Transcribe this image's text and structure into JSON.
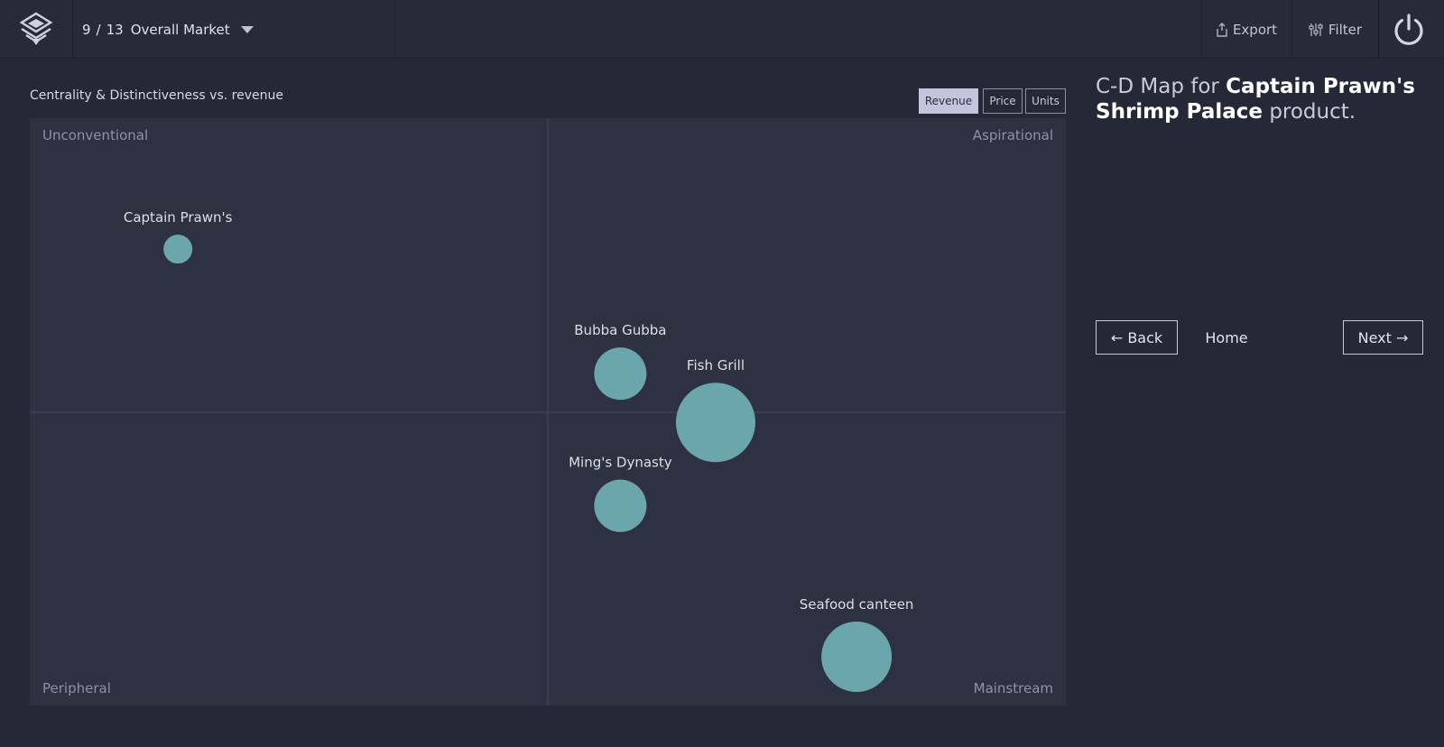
{
  "topbar": {
    "page_current": "9",
    "page_sep": "/",
    "page_total": "13",
    "market_label": "Overall Market",
    "export_label": "Export",
    "filter_label": "Filter"
  },
  "chart": {
    "title": "Centrality & Distinctiveness vs. revenue",
    "toggles": {
      "revenue": "Revenue",
      "price": "Price",
      "units": "Units",
      "active": "Revenue"
    },
    "quadrants": {
      "top_left": "Unconventional",
      "top_right": "Aspirational",
      "bottom_left": "Peripheral",
      "bottom_right": "Mainstream"
    }
  },
  "chart_data": {
    "type": "scatter",
    "title": "Centrality & Distinctiveness vs. revenue",
    "xlabel": "",
    "ylabel": "",
    "grid": false,
    "bubble_color": "#6ba6ad",
    "points": [
      {
        "name": "Captain Prawn's",
        "x": 0.143,
        "y": 0.777,
        "size": 16
      },
      {
        "name": "Bubba Gubba",
        "x": 0.57,
        "y": 0.565,
        "size": 29
      },
      {
        "name": "Fish Grill",
        "x": 0.662,
        "y": 0.482,
        "size": 44
      },
      {
        "name": "Ming's Dynasty",
        "x": 0.57,
        "y": 0.34,
        "size": 29
      },
      {
        "name": "Seafood canteen",
        "x": 0.798,
        "y": 0.083,
        "size": 39
      }
    ]
  },
  "panel": {
    "heading_prefix": "C-D Map for",
    "heading_brand": "Captain Prawn's Shrimp Palace",
    "heading_suffix": "product.",
    "back_label": "← Back",
    "home_label": "Home",
    "next_label": "Next →"
  },
  "colors": {
    "background": "#252836",
    "plot": "#2e3142",
    "bubble": "#6ba6ad",
    "active_toggle": "#c3c5dc"
  }
}
